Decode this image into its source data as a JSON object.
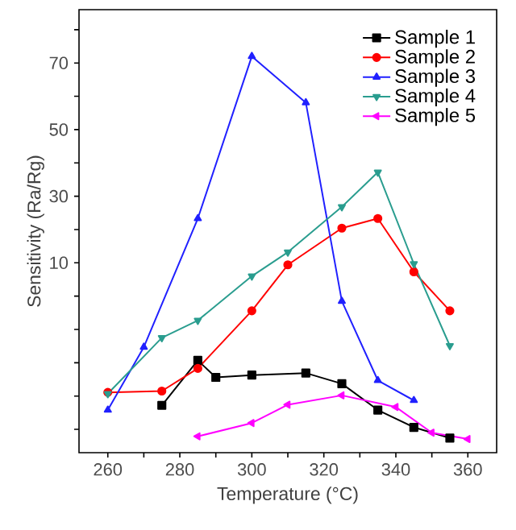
{
  "chart_data": {
    "type": "line",
    "xlabel": "Temperature (°C)",
    "ylabel": "Sensitivity (Ra/Rg)",
    "xlim": [
      252,
      368
    ],
    "ylim": [
      -47,
      86
    ],
    "xticks": [
      260,
      {
        "value": 270,
        "label": null
      },
      280,
      {
        "value": 290,
        "label": null
      },
      300,
      {
        "value": 310,
        "label": null
      },
      320,
      {
        "value": 330,
        "label": null
      },
      340,
      {
        "value": 350,
        "label": null
      },
      360
    ],
    "yticks": [
      {
        "value": -40,
        "label": null
      },
      {
        "value": -30,
        "label": null
      },
      {
        "value": -20,
        "label": null
      },
      {
        "value": -10,
        "label": null
      },
      {
        "value": 0,
        "label": null
      },
      10,
      {
        "value": 20,
        "label": null
      },
      30,
      {
        "value": 40,
        "label": null
      },
      50,
      {
        "value": 60,
        "label": null
      },
      70,
      {
        "value": 80,
        "label": null
      }
    ],
    "legend": "top right",
    "line_style": "solid",
    "series": [
      {
        "name": "Sample 1",
        "color": "#000000",
        "marker": "square",
        "x": [
          275,
          285,
          290,
          300,
          315,
          325,
          335,
          345,
          355
        ],
        "values": [
          -32.8,
          -19.3,
          -24.4,
          -23.7,
          -23.1,
          -26.3,
          -34.2,
          -39.4,
          -42.6
        ]
      },
      {
        "name": "Sample 2",
        "color": "#ff0000",
        "marker": "circle",
        "x": [
          260,
          275,
          285,
          300,
          310,
          325,
          335,
          345,
          355
        ],
        "values": [
          -28.9,
          -28.5,
          -21.7,
          -4.4,
          9.4,
          20.4,
          23.3,
          7.3,
          -4.4
        ]
      },
      {
        "name": "Sample 3",
        "color": "#2020ff",
        "marker": "triangle",
        "x": [
          260,
          270,
          285,
          300,
          315,
          325,
          335,
          345
        ],
        "values": [
          -34.2,
          -15.3,
          23.3,
          72.0,
          58.1,
          -1.5,
          -25.3,
          -31.3
        ]
      },
      {
        "name": "Sample 4",
        "color": "#2a9d8f",
        "marker": "triangle-down",
        "x": [
          260,
          275,
          285,
          300,
          310,
          325,
          335,
          345,
          355
        ],
        "values": [
          -29.3,
          -12.5,
          -7.3,
          6.0,
          13.2,
          26.8,
          37.2,
          9.7,
          -14.9
        ]
      },
      {
        "name": "Sample 5",
        "color": "#ff00ff",
        "marker": "triangle-left",
        "x": [
          285,
          300,
          310,
          325,
          340,
          350,
          360
        ],
        "values": [
          -42.1,
          -38.1,
          -32.6,
          -29.8,
          -33.3,
          -41.0,
          -42.9
        ]
      }
    ]
  }
}
